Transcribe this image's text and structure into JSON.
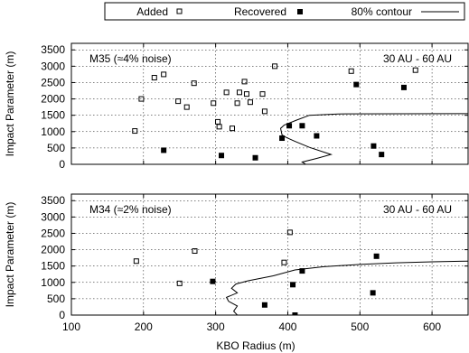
{
  "legend": {
    "items": [
      {
        "label": "Added",
        "marker": "open-square"
      },
      {
        "label": "Recovered",
        "marker": "filled-square"
      },
      {
        "label": "80% contour",
        "marker": "line"
      }
    ]
  },
  "xlabel": "KBO Radius (m)",
  "chart_data": [
    {
      "type": "scatter",
      "panel_label": "M35 (≈4% noise)",
      "range_label": "30 AU - 60 AU",
      "xlabel": "KBO Radius (m)",
      "ylabel": "Impact Parameter (m)",
      "xlim": [
        100,
        650
      ],
      "ylim": [
        0,
        3700
      ],
      "xticks": [
        "100",
        "200",
        "300",
        "400",
        "500",
        "600"
      ],
      "yticks": [
        "0",
        "500",
        "1000",
        "1500",
        "2000",
        "2500",
        "3000",
        "3500"
      ],
      "grid": true,
      "series": [
        {
          "name": "Added",
          "marker": "open-square",
          "points": [
            [
              188,
              1020
            ],
            [
              197,
              2000
            ],
            [
              215,
              2650
            ],
            [
              228,
              2750
            ],
            [
              248,
              1930
            ],
            [
              260,
              1750
            ],
            [
              270,
              2480
            ],
            [
              297,
              1870
            ],
            [
              303,
              1300
            ],
            [
              305,
              1150
            ],
            [
              315,
              2200
            ],
            [
              323,
              1100
            ],
            [
              330,
              1870
            ],
            [
              333,
              2200
            ],
            [
              340,
              2530
            ],
            [
              343,
              2150
            ],
            [
              348,
              1900
            ],
            [
              365,
              2150
            ],
            [
              368,
              1620
            ],
            [
              382,
              3000
            ],
            [
              488,
              2850
            ],
            [
              577,
              2880
            ]
          ]
        },
        {
          "name": "Recovered",
          "marker": "filled-square",
          "points": [
            [
              228,
              430
            ],
            [
              308,
              270
            ],
            [
              355,
              200
            ],
            [
              392,
              800
            ],
            [
              402,
              1180
            ],
            [
              420,
              1180
            ],
            [
              440,
              870
            ],
            [
              495,
              2440
            ],
            [
              519,
              560
            ],
            [
              530,
              300
            ],
            [
              561,
              2350
            ]
          ]
        },
        {
          "name": "80% contour",
          "marker": "line",
          "points": [
            [
              425,
              0
            ],
            [
              420,
              70
            ],
            [
              440,
              180
            ],
            [
              460,
              300
            ],
            [
              430,
              520
            ],
            [
              410,
              700
            ],
            [
              398,
              820
            ],
            [
              392,
              900
            ],
            [
              390,
              1100
            ],
            [
              395,
              1200
            ],
            [
              412,
              1350
            ],
            [
              430,
              1500
            ],
            [
              470,
              1540
            ],
            [
              650,
              1550
            ]
          ]
        }
      ]
    },
    {
      "type": "scatter",
      "panel_label": "M34 (≈2% noise)",
      "range_label": "30 AU - 60 AU",
      "xlabel": "KBO Radius (m)",
      "ylabel": "Impact Parameter (m)",
      "xlim": [
        100,
        650
      ],
      "ylim": [
        0,
        3700
      ],
      "xticks": [
        "100",
        "200",
        "300",
        "400",
        "500",
        "600"
      ],
      "yticks": [
        "0",
        "500",
        "1000",
        "1500",
        "2000",
        "2500",
        "3000",
        "3500"
      ],
      "grid": true,
      "series": [
        {
          "name": "Added",
          "marker": "open-square",
          "points": [
            [
              190,
              1650
            ],
            [
              250,
              970
            ],
            [
              271,
              1960
            ],
            [
              395,
              1610
            ],
            [
              403,
              2530
            ]
          ]
        },
        {
          "name": "Recovered",
          "marker": "filled-square",
          "points": [
            [
              296,
              1030
            ],
            [
              368,
              310
            ],
            [
              407,
              930
            ],
            [
              410,
              0
            ],
            [
              420,
              1350
            ],
            [
              518,
              680
            ],
            [
              523,
              1800
            ]
          ]
        },
        {
          "name": "80% contour",
          "marker": "line",
          "points": [
            [
              330,
              0
            ],
            [
              325,
              120
            ],
            [
              330,
              280
            ],
            [
              318,
              420
            ],
            [
              315,
              540
            ],
            [
              330,
              680
            ],
            [
              322,
              820
            ],
            [
              328,
              950
            ],
            [
              345,
              1050
            ],
            [
              380,
              1200
            ],
            [
              410,
              1380
            ],
            [
              450,
              1480
            ],
            [
              500,
              1550
            ],
            [
              550,
              1600
            ],
            [
              600,
              1630
            ],
            [
              650,
              1650
            ]
          ]
        }
      ]
    }
  ]
}
